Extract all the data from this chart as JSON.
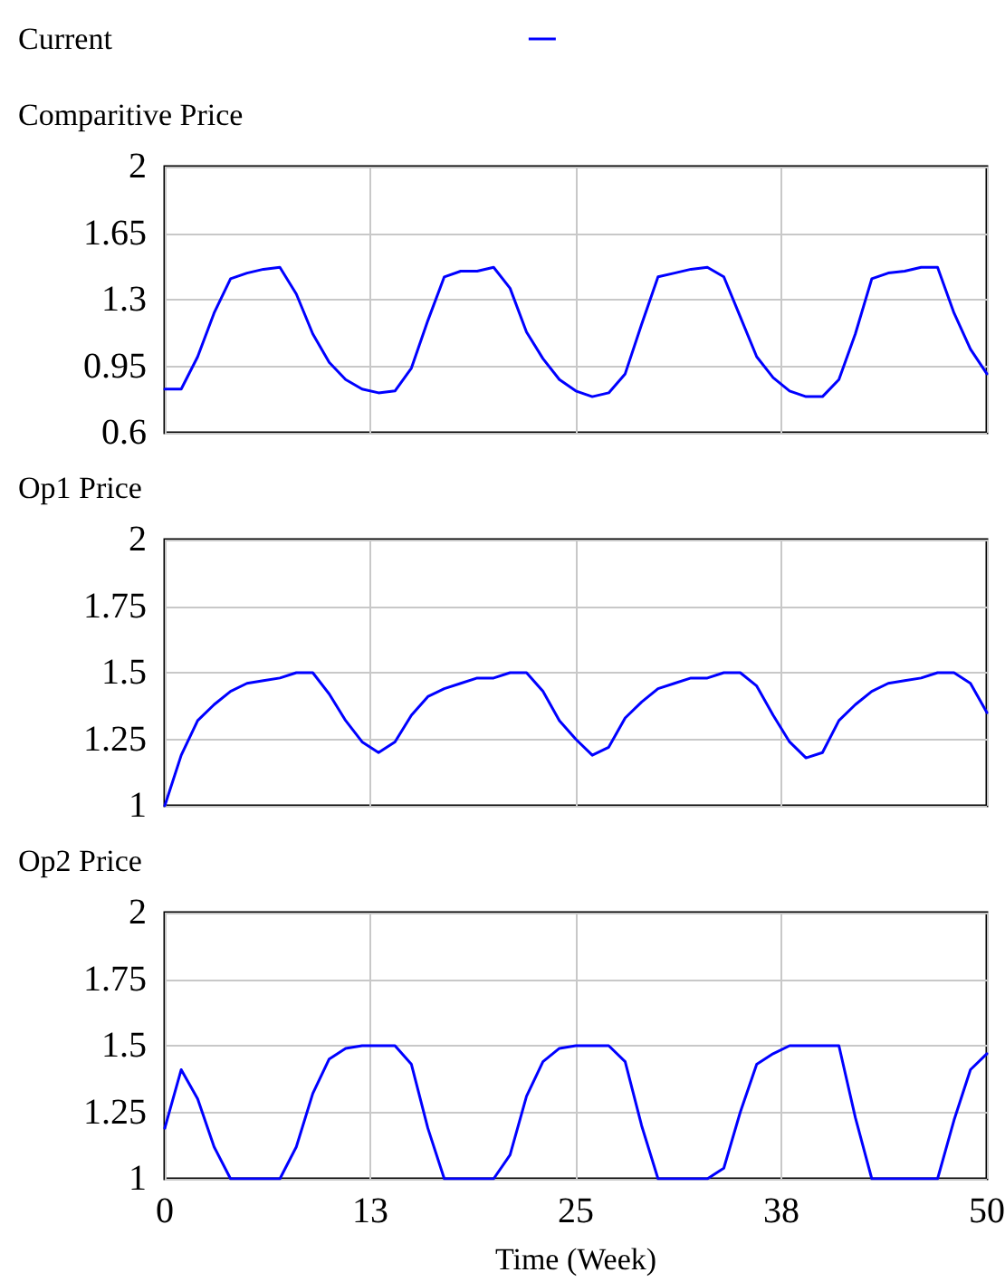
{
  "chart_data": [
    {
      "type": "line",
      "title": "Comparitive Price",
      "legend": "top left",
      "grid": true,
      "marker": "none",
      "tick_labels": "y",
      "xlim": [
        0,
        50
      ],
      "xticks": [
        0,
        12.5,
        25,
        37.5,
        50
      ],
      "ylim": [
        0.6,
        2
      ],
      "yticks": [
        0.6,
        0.95,
        1.3,
        1.65,
        2
      ],
      "x": [
        0,
        1,
        2,
        3,
        4,
        5,
        6,
        7,
        8,
        9,
        10,
        11,
        12,
        13,
        14,
        15,
        16,
        17,
        18,
        19,
        20,
        21,
        22,
        23,
        24,
        25,
        26,
        27,
        28,
        29,
        30,
        31,
        32,
        33,
        34,
        35,
        36,
        37,
        38,
        39,
        40,
        41,
        42,
        43,
        44,
        45,
        46,
        47,
        48,
        49,
        50
      ],
      "series": [
        {
          "name": "Current",
          "color": "#0000ff",
          "values": [
            0.83,
            0.83,
            1.0,
            1.23,
            1.41,
            1.44,
            1.46,
            1.47,
            1.33,
            1.12,
            0.97,
            0.88,
            0.83,
            0.81,
            0.82,
            0.94,
            1.19,
            1.42,
            1.45,
            1.45,
            1.47,
            1.36,
            1.13,
            0.99,
            0.88,
            0.82,
            0.79,
            0.81,
            0.91,
            1.17,
            1.42,
            1.44,
            1.46,
            1.47,
            1.42,
            1.21,
            1.0,
            0.89,
            0.82,
            0.79,
            0.79,
            0.88,
            1.12,
            1.41,
            1.44,
            1.45,
            1.47,
            1.47,
            1.23,
            1.04,
            0.91
          ]
        }
      ]
    },
    {
      "type": "line",
      "title": "Op1 Price",
      "grid": true,
      "marker": "none",
      "tick_labels": "y",
      "xlim": [
        0,
        50
      ],
      "xticks": [
        0,
        12.5,
        25,
        37.5,
        50
      ],
      "ylim": [
        1,
        2
      ],
      "yticks": [
        1,
        1.25,
        1.5,
        1.75,
        2
      ],
      "x": [
        0,
        1,
        2,
        3,
        4,
        5,
        6,
        7,
        8,
        9,
        10,
        11,
        12,
        13,
        14,
        15,
        16,
        17,
        18,
        19,
        20,
        21,
        22,
        23,
        24,
        25,
        26,
        27,
        28,
        29,
        30,
        31,
        32,
        33,
        34,
        35,
        36,
        37,
        38,
        39,
        40,
        41,
        42,
        43,
        44,
        45,
        46,
        47,
        48,
        49,
        50
      ],
      "series": [
        {
          "color": "#0000ff",
          "values": [
            1.0,
            1.19,
            1.32,
            1.38,
            1.43,
            1.46,
            1.47,
            1.48,
            1.5,
            1.5,
            1.42,
            1.32,
            1.24,
            1.2,
            1.24,
            1.34,
            1.41,
            1.44,
            1.46,
            1.48,
            1.48,
            1.5,
            1.5,
            1.43,
            1.32,
            1.25,
            1.19,
            1.22,
            1.33,
            1.39,
            1.44,
            1.46,
            1.48,
            1.48,
            1.5,
            1.5,
            1.45,
            1.34,
            1.24,
            1.18,
            1.2,
            1.32,
            1.38,
            1.43,
            1.46,
            1.47,
            1.48,
            1.5,
            1.5,
            1.46,
            1.35
          ]
        }
      ]
    },
    {
      "type": "line",
      "title": "Op2 Price",
      "xlabel": "Time (Week)",
      "grid": true,
      "marker": "none",
      "xlim": [
        0,
        50
      ],
      "xticks": [
        0,
        {
          "value": 12.5,
          "label": "13"
        },
        25,
        {
          "value": 37.5,
          "label": "38"
        },
        50
      ],
      "ylim": [
        1,
        2
      ],
      "yticks": [
        1,
        1.25,
        1.5,
        1.75,
        2
      ],
      "x": [
        0,
        1,
        2,
        3,
        4,
        5,
        6,
        7,
        8,
        9,
        10,
        11,
        12,
        13,
        14,
        15,
        16,
        17,
        18,
        19,
        20,
        21,
        22,
        23,
        24,
        25,
        26,
        27,
        28,
        29,
        30,
        31,
        32,
        33,
        34,
        35,
        36,
        37,
        38,
        39,
        40,
        41,
        42,
        43,
        44,
        45,
        46,
        47,
        48,
        49,
        50
      ],
      "series": [
        {
          "color": "#0000ff",
          "values": [
            1.19,
            1.41,
            1.3,
            1.12,
            1.0,
            1.0,
            1.0,
            1.0,
            1.12,
            1.32,
            1.45,
            1.49,
            1.5,
            1.5,
            1.5,
            1.43,
            1.19,
            1.0,
            1.0,
            1.0,
            1.0,
            1.09,
            1.31,
            1.44,
            1.49,
            1.5,
            1.5,
            1.5,
            1.44,
            1.2,
            1.0,
            1.0,
            1.0,
            1.0,
            1.04,
            1.25,
            1.43,
            1.47,
            1.5,
            1.5,
            1.5,
            1.5,
            1.23,
            1.0,
            1.0,
            1.0,
            1.0,
            1.0,
            1.22,
            1.41,
            1.47
          ]
        }
      ]
    }
  ]
}
